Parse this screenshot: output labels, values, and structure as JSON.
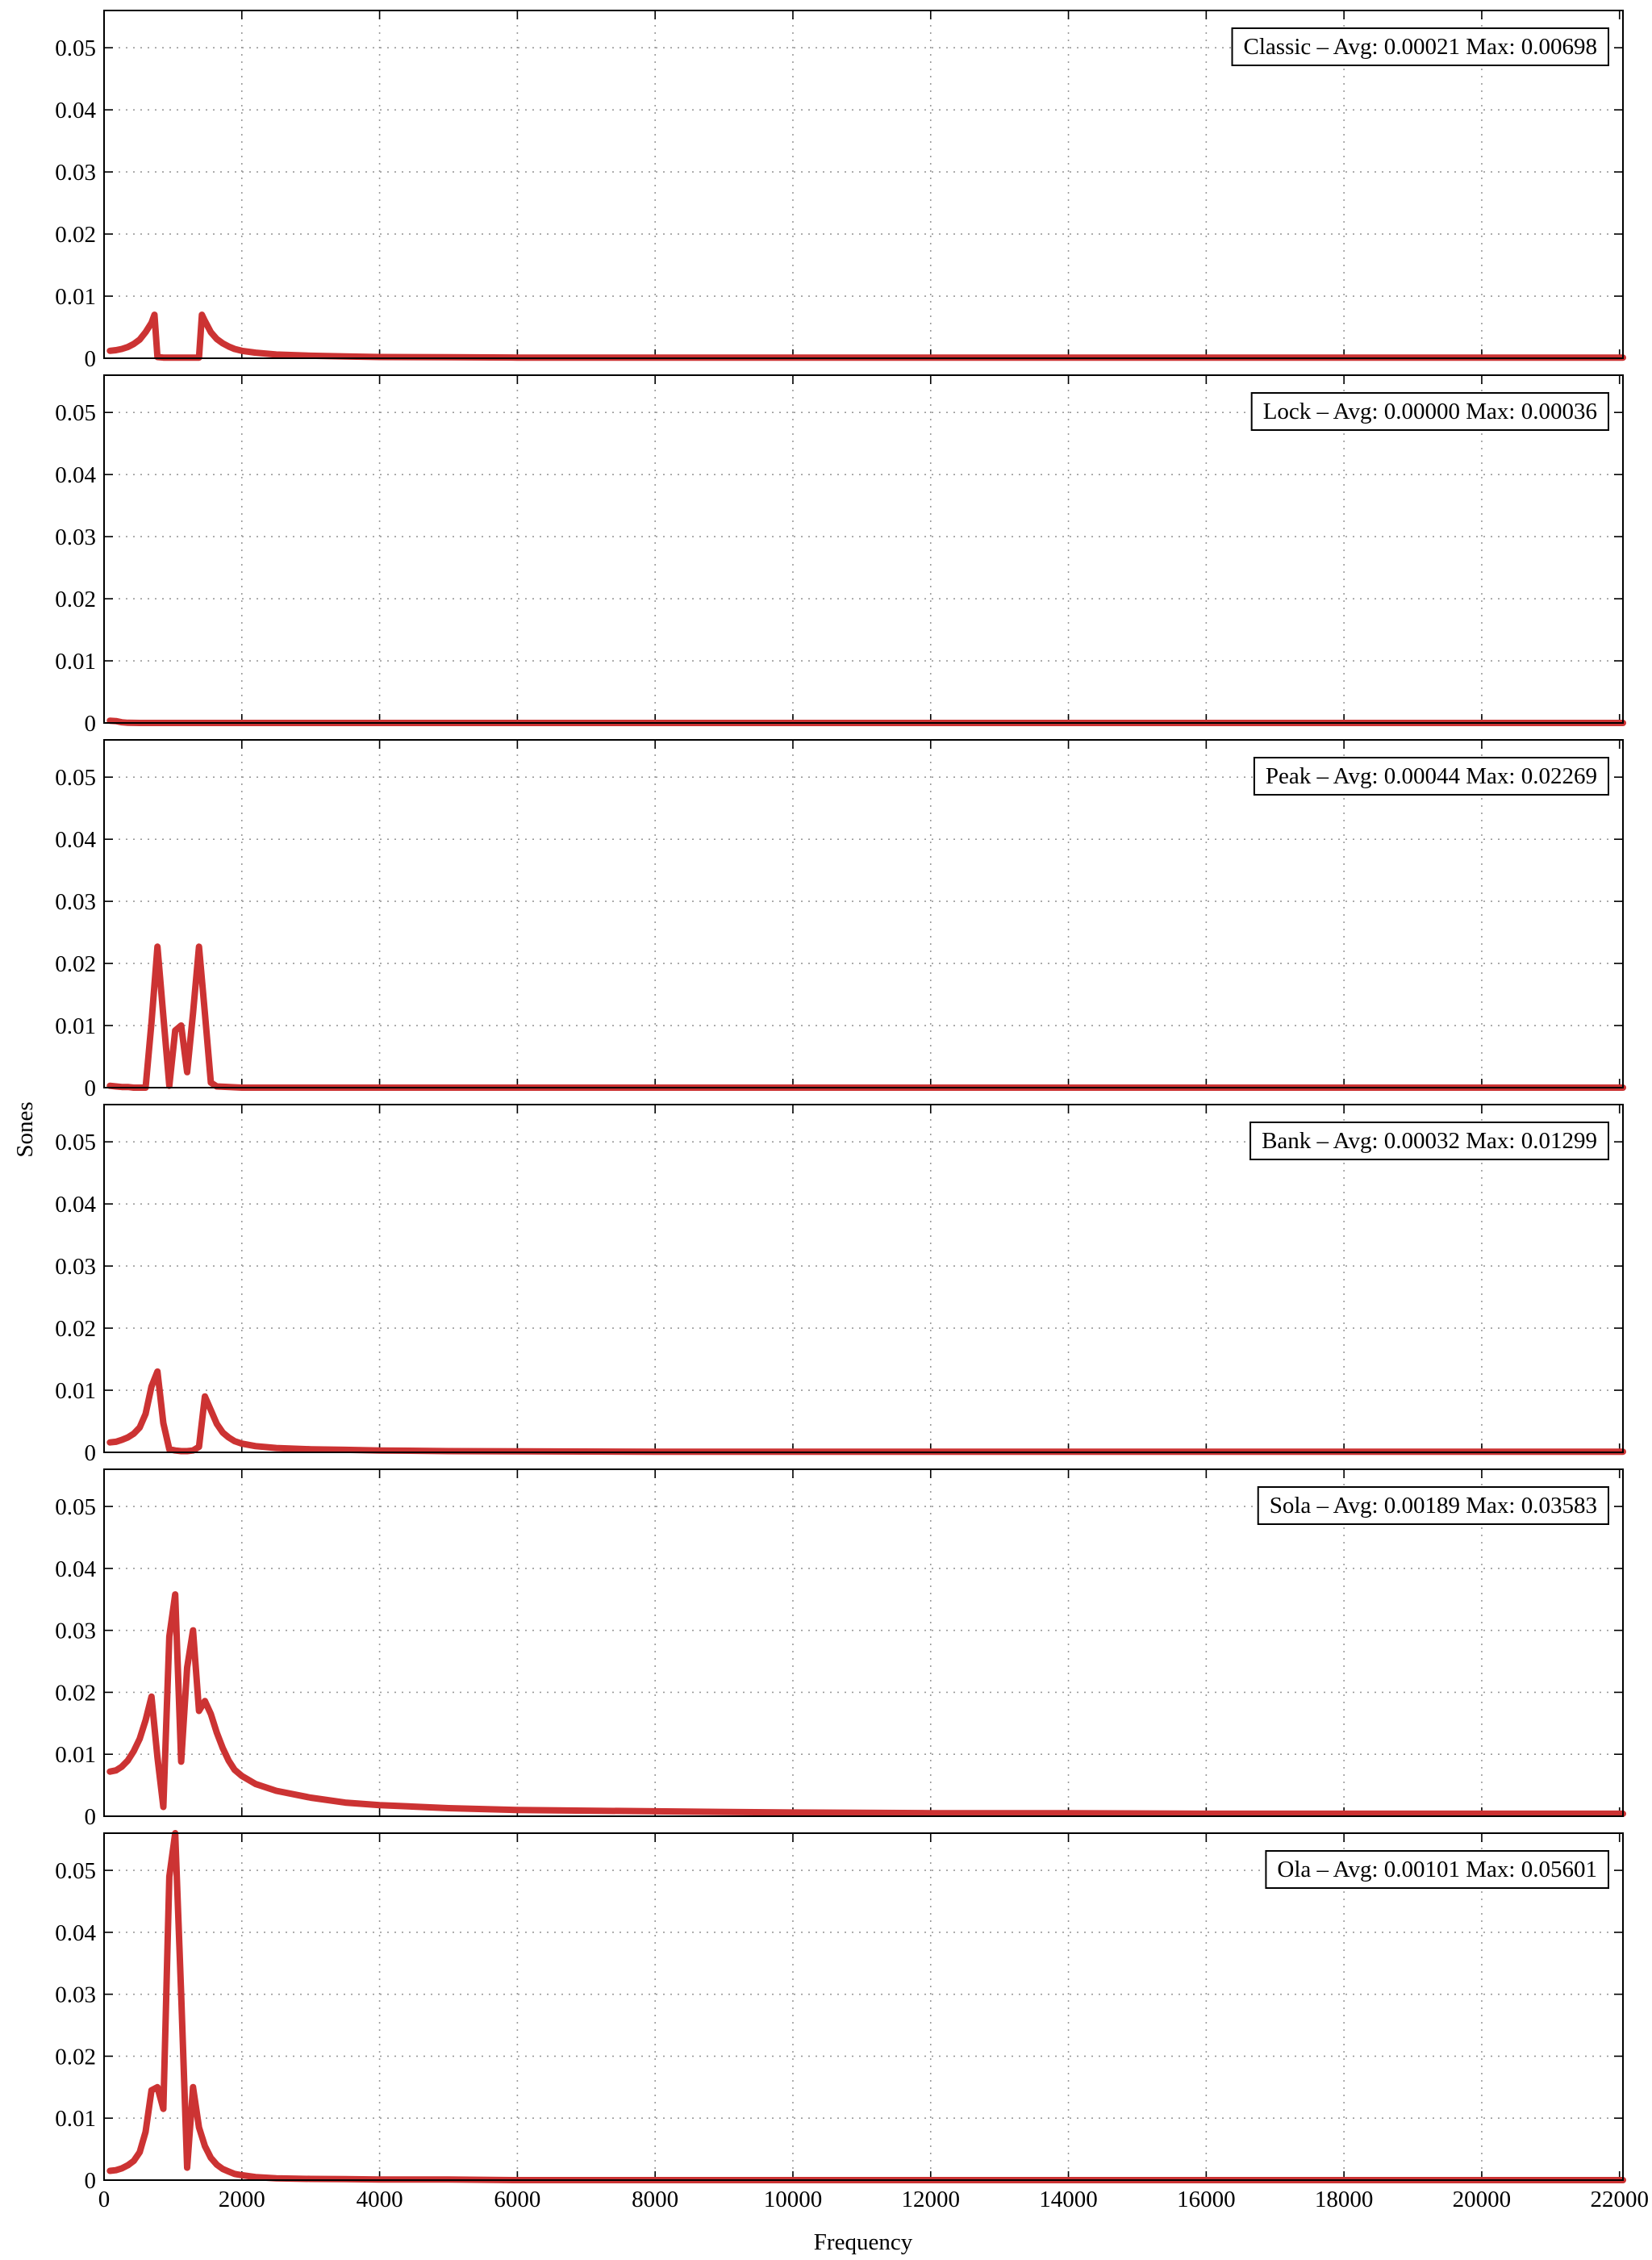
{
  "figure": {
    "xlabel": "Frequency",
    "ylabel": "Sones"
  },
  "chart_data": [
    {
      "type": "line",
      "legend": "Classic – Avg: 0.00021 Max: 0.00698",
      "xlabel": "",
      "ylabel": "",
      "xlim": [
        0,
        22050
      ],
      "ylim": [
        0,
        0.056
      ],
      "grid": "dotted",
      "legend_position": "top-right",
      "series": [
        {
          "color": "#cc3333",
          "x": [
            86,
            172,
            258,
            345,
            431,
            517,
            603,
            689,
            732,
            775,
            861,
            947,
            1033,
            1119,
            1206,
            1292,
            1378,
            1421,
            1464,
            1550,
            1636,
            1722,
            1808,
            1895,
            2000,
            2200,
            2500,
            3000,
            3500,
            4000,
            5000,
            6000,
            8000,
            10000,
            14000,
            18000,
            22050
          ],
          "y": [
            0.0012,
            0.0013,
            0.0015,
            0.0018,
            0.0023,
            0.003,
            0.0042,
            0.0057,
            0.007,
            0.0002,
            0.0001,
            0.0001,
            0.0001,
            0.0001,
            0.0001,
            0.0001,
            0.0001,
            0.007,
            0.006,
            0.0042,
            0.0031,
            0.0024,
            0.0019,
            0.0015,
            0.0012,
            0.0009,
            0.0006,
            0.0004,
            0.0003,
            0.0002,
            0.00015,
            0.0001,
            0.0001,
            0.0001,
            0.0001,
            0.0001,
            0.0001
          ]
        }
      ]
    },
    {
      "type": "line",
      "legend": "Lock – Avg: 0.00000 Max: 0.00036",
      "xlabel": "",
      "ylabel": "",
      "xlim": [
        0,
        22050
      ],
      "ylim": [
        0,
        0.056
      ],
      "grid": "dotted",
      "legend_position": "top-right",
      "series": [
        {
          "color": "#cc3333",
          "x": [
            86,
            172,
            258,
            345,
            431,
            517,
            2000,
            5000,
            10000,
            15000,
            22050
          ],
          "y": [
            0.00036,
            0.0003,
            0.0001,
            3e-05,
            1e-05,
            0.0,
            0.0,
            0.0,
            0.0,
            0.0,
            0.0
          ]
        }
      ]
    },
    {
      "type": "line",
      "legend": "Peak – Avg: 0.00044 Max: 0.02269",
      "xlabel": "",
      "ylabel": "",
      "xlim": [
        0,
        22050
      ],
      "ylim": [
        0,
        0.056
      ],
      "grid": "dotted",
      "legend_position": "top-right",
      "series": [
        {
          "color": "#cc3333",
          "x": [
            86,
            172,
            258,
            345,
            431,
            517,
            603,
            689,
            775,
            861,
            947,
            1033,
            1119,
            1206,
            1292,
            1378,
            1464,
            1550,
            1636,
            2000,
            5000,
            10000,
            15000,
            22050
          ],
          "y": [
            0.0003,
            0.0002,
            0.0001,
            0.0001,
            0.0,
            0.0,
            0.0,
            0.0105,
            0.0227,
            0.0115,
            0.0003,
            0.0092,
            0.01,
            0.0025,
            0.012,
            0.0227,
            0.012,
            0.0008,
            0.0002,
            0.0,
            0.0,
            0.0,
            0.0,
            0.0
          ]
        }
      ]
    },
    {
      "type": "line",
      "legend": "Bank – Avg: 0.00032 Max: 0.01299",
      "xlabel": "",
      "ylabel": "",
      "xlim": [
        0,
        22050
      ],
      "ylim": [
        0,
        0.056
      ],
      "grid": "dotted",
      "legend_position": "top-right",
      "series": [
        {
          "color": "#cc3333",
          "x": [
            86,
            172,
            258,
            345,
            431,
            517,
            603,
            689,
            775,
            861,
            947,
            1033,
            1119,
            1206,
            1292,
            1378,
            1464,
            1550,
            1636,
            1722,
            1808,
            1895,
            2000,
            2200,
            2500,
            3000,
            3500,
            4000,
            5000,
            6000,
            8000,
            10000,
            14000,
            18000,
            22050
          ],
          "y": [
            0.0016,
            0.0017,
            0.002,
            0.0024,
            0.003,
            0.004,
            0.0062,
            0.0106,
            0.013,
            0.0047,
            0.0005,
            0.0003,
            0.0002,
            0.0002,
            0.0003,
            0.0009,
            0.009,
            0.0068,
            0.0046,
            0.0032,
            0.0024,
            0.0018,
            0.0014,
            0.001,
            0.0007,
            0.0005,
            0.0004,
            0.0003,
            0.0002,
            0.00015,
            0.0001,
            0.0001,
            0.0001,
            0.0001,
            0.0001
          ]
        }
      ]
    },
    {
      "type": "line",
      "legend": "Sola – Avg: 0.00189 Max: 0.03583",
      "xlabel": "",
      "ylabel": "",
      "xlim": [
        0,
        22050
      ],
      "ylim": [
        0,
        0.056
      ],
      "grid": "dotted",
      "legend_position": "top-right",
      "series": [
        {
          "color": "#cc3333",
          "x": [
            86,
            172,
            258,
            345,
            431,
            517,
            603,
            689,
            775,
            861,
            947,
            1033,
            1119,
            1206,
            1292,
            1378,
            1464,
            1550,
            1636,
            1722,
            1808,
            1895,
            2000,
            2200,
            2500,
            3000,
            3500,
            4000,
            5000,
            6000,
            8000,
            10000,
            12000,
            14000,
            16000,
            18000,
            20000,
            22050
          ],
          "y": [
            0.0072,
            0.0074,
            0.008,
            0.009,
            0.0105,
            0.0125,
            0.0155,
            0.0193,
            0.0095,
            0.0015,
            0.029,
            0.0358,
            0.0088,
            0.024,
            0.03,
            0.017,
            0.0186,
            0.0165,
            0.0135,
            0.011,
            0.009,
            0.0075,
            0.0065,
            0.0052,
            0.0041,
            0.003,
            0.0022,
            0.0018,
            0.0013,
            0.001,
            0.0008,
            0.0006,
            0.0005,
            0.0005,
            0.0004,
            0.0004,
            0.0004,
            0.0004
          ]
        }
      ]
    },
    {
      "type": "line",
      "legend": "Ola – Avg: 0.00101 Max: 0.05601",
      "xlabel": "",
      "ylabel": "",
      "xlim": [
        0,
        22050
      ],
      "ylim": [
        0,
        0.056
      ],
      "grid": "dotted",
      "legend_position": "top-right",
      "series": [
        {
          "color": "#cc3333",
          "x": [
            86,
            172,
            258,
            345,
            431,
            517,
            603,
            689,
            775,
            861,
            947,
            1033,
            1119,
            1206,
            1292,
            1378,
            1464,
            1550,
            1636,
            1722,
            1808,
            1895,
            2000,
            2200,
            2500,
            3000,
            3500,
            4000,
            5000,
            6000,
            8000,
            10000,
            14000,
            18000,
            22050
          ],
          "y": [
            0.0015,
            0.0016,
            0.0019,
            0.0024,
            0.0031,
            0.0045,
            0.0078,
            0.0145,
            0.015,
            0.0115,
            0.049,
            0.056,
            0.03,
            0.002,
            0.015,
            0.0085,
            0.0055,
            0.0036,
            0.0025,
            0.0018,
            0.0014,
            0.001,
            0.0008,
            0.0005,
            0.0003,
            0.0002,
            0.00015,
            0.0001,
            0.0001,
            0.0,
            0.0,
            0.0,
            0.0,
            0.0,
            0.0
          ]
        }
      ]
    }
  ]
}
